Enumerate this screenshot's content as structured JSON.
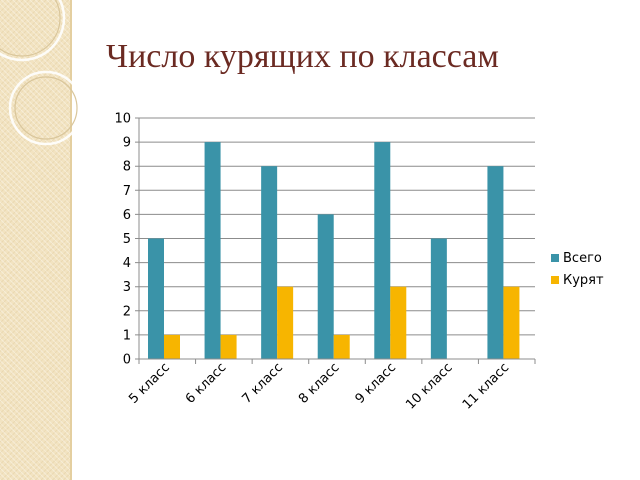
{
  "slide": {
    "title": "Число курящих по классам"
  },
  "colors": {
    "series_total": "#3a93a8",
    "series_smoking": "#f7b500",
    "title": "#6b2a22",
    "band": "#f2e3c1"
  },
  "chart_data": {
    "type": "bar",
    "categories": [
      "5 класс",
      "6 класс",
      "7 класс",
      "8 класс",
      "9 класс",
      "10 класс",
      "11 класс"
    ],
    "series": [
      {
        "name": "Всего",
        "values": [
          5,
          9,
          8,
          6,
          9,
          5,
          8
        ]
      },
      {
        "name": "Курят",
        "values": [
          1,
          1,
          3,
          1,
          3,
          0,
          3
        ]
      }
    ],
    "title": "Число курящих по классам",
    "xlabel": "",
    "ylabel": "",
    "ylim": [
      0,
      10
    ],
    "yticks": [
      "0",
      "1",
      "2",
      "3",
      "4",
      "5",
      "6",
      "7",
      "8",
      "9",
      "10"
    ],
    "grid": true,
    "legend": "right"
  }
}
